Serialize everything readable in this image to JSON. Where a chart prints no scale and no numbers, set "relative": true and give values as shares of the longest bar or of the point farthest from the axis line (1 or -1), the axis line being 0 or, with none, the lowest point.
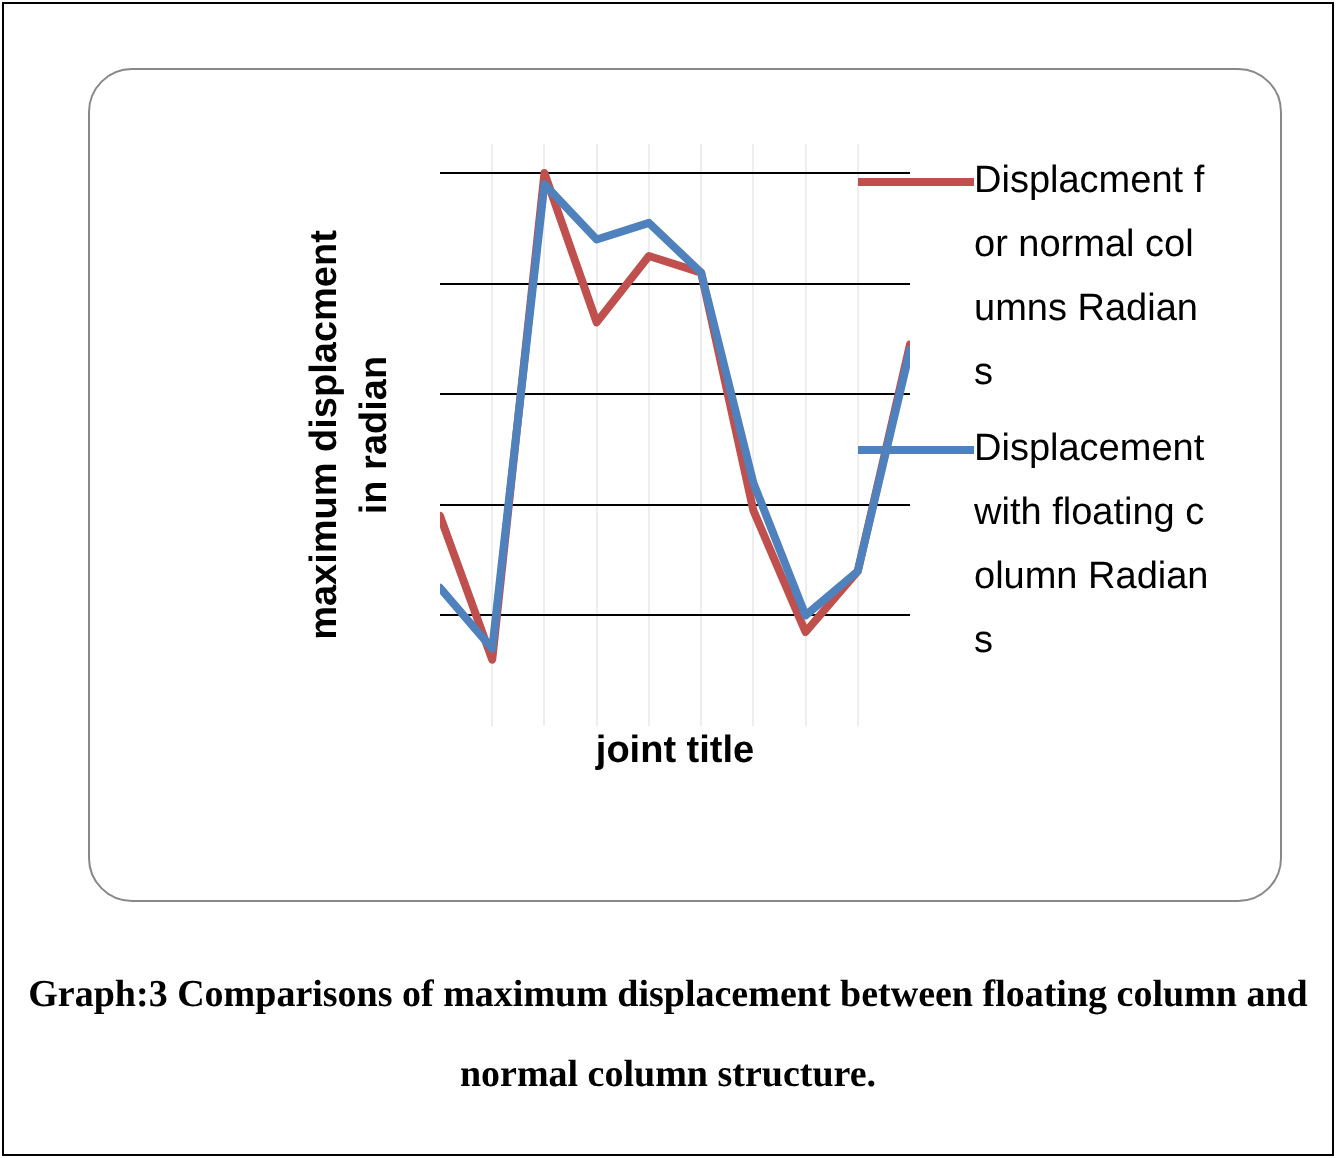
{
  "chart_data": {
    "type": "line",
    "relative": true,
    "ylabel": "maximum displacment in radian",
    "xlabel": "joint title",
    "categories": [
      null,
      null,
      null,
      null,
      null,
      null,
      null,
      null,
      null,
      null
    ],
    "series": [
      {
        "name": "Displacment for normal columns Radians",
        "color": "#c0504d",
        "values": [
          0.38,
          0.12,
          1,
          0.73,
          0.85,
          0.82,
          0.39,
          0.17,
          0.28,
          0.69
        ]
      },
      {
        "name": "Displacement with floating column Radians",
        "color": "#4f81bd",
        "values": [
          0.25,
          0.14,
          0.98,
          0.88,
          0.91,
          0.82,
          0.44,
          0.2,
          0.28,
          0.68
        ]
      }
    ],
    "grid": true,
    "legend": "right",
    "marker": "none",
    "line_style": "solid",
    "annotations": [
      "Graph:3 Comparisons of maximum displacement between floating column and normal column structure."
    ]
  }
}
